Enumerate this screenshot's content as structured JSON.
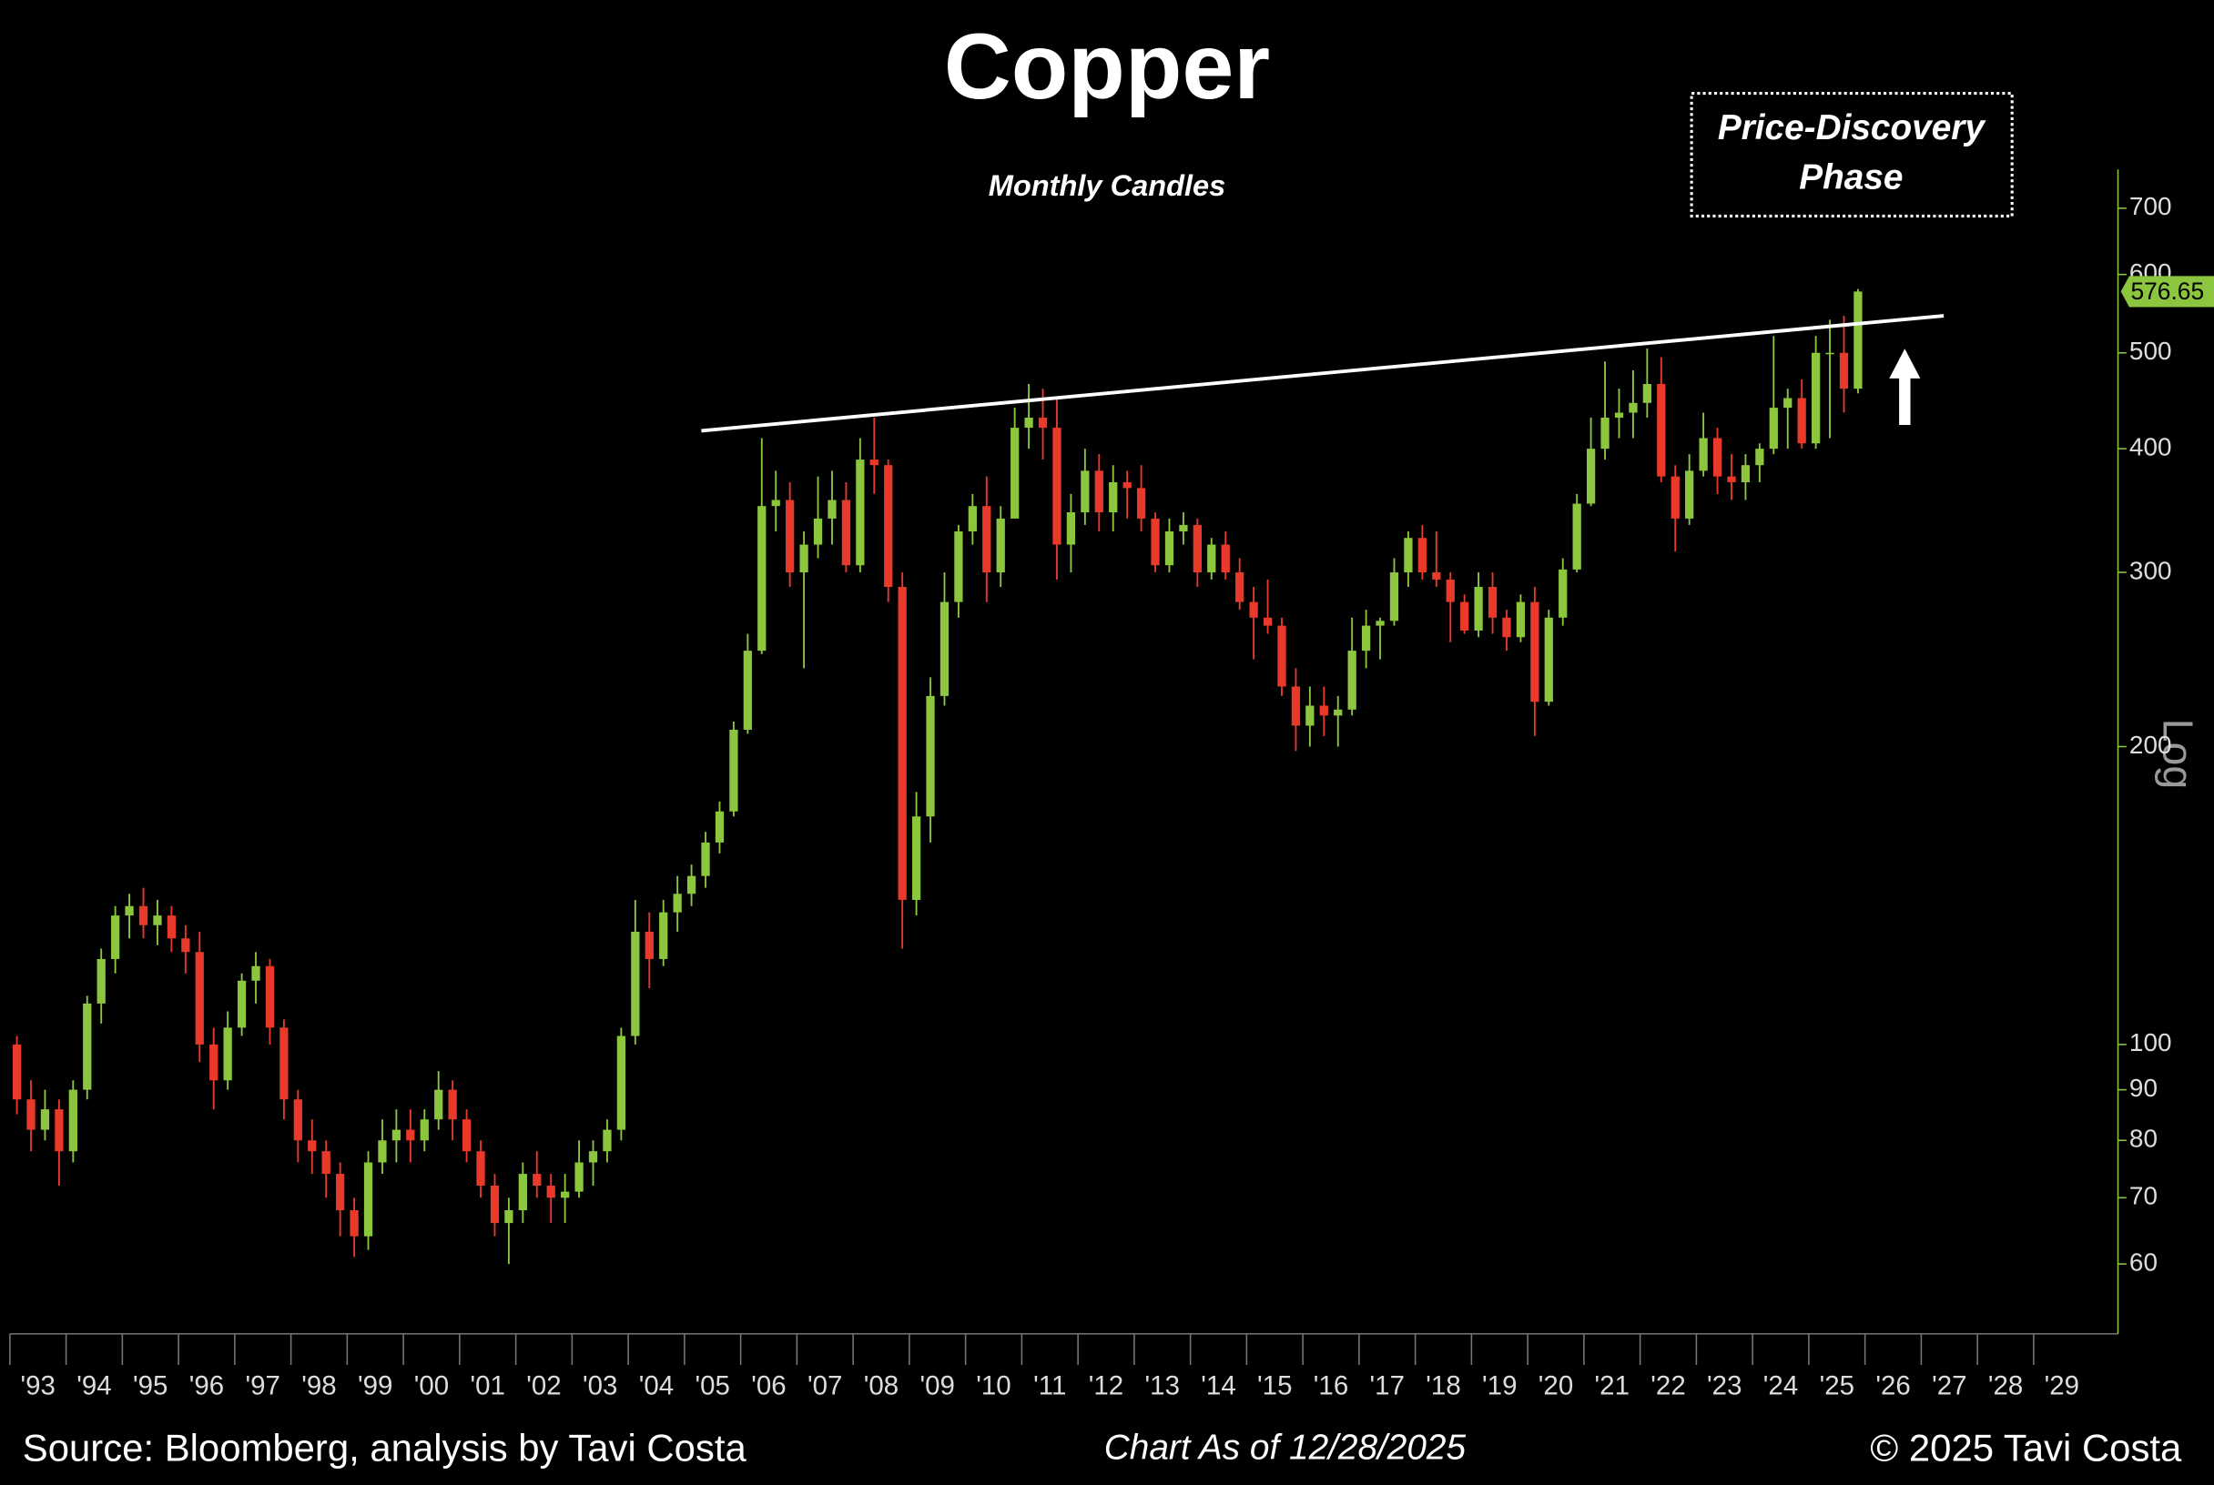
{
  "chart_data": {
    "type": "candlestick",
    "title": "Copper",
    "subtitle": "Monthly Candles",
    "annotation": [
      "Price-Discovery",
      "Phase"
    ],
    "scale_label": "Log",
    "log_scale": true,
    "up_color": "#8cc63f",
    "down_color": "#e8392a",
    "trendline": {
      "color": "#ffffff",
      "x": [
        2005.3,
        2027.4
      ],
      "y": [
        417,
        545
      ]
    },
    "xlim": [
      1993,
      2030.5
    ],
    "ylim": [
      51,
      766
    ],
    "xticks": [
      {
        "value": 1993,
        "label": "'93"
      },
      {
        "value": 1994,
        "label": "'94"
      },
      {
        "value": 1995,
        "label": "'95"
      },
      {
        "value": 1996,
        "label": "'96"
      },
      {
        "value": 1997,
        "label": "'97"
      },
      {
        "value": 1998,
        "label": "'98"
      },
      {
        "value": 1999,
        "label": "'99"
      },
      {
        "value": 2000,
        "label": "'00"
      },
      {
        "value": 2001,
        "label": "'01"
      },
      {
        "value": 2002,
        "label": "'02"
      },
      {
        "value": 2003,
        "label": "'03"
      },
      {
        "value": 2004,
        "label": "'04"
      },
      {
        "value": 2005,
        "label": "'05"
      },
      {
        "value": 2006,
        "label": "'06"
      },
      {
        "value": 2007,
        "label": "'07"
      },
      {
        "value": 2008,
        "label": "'08"
      },
      {
        "value": 2009,
        "label": "'09"
      },
      {
        "value": 2010,
        "label": "'10"
      },
      {
        "value": 2011,
        "label": "'11"
      },
      {
        "value": 2012,
        "label": "'12"
      },
      {
        "value": 2013,
        "label": "'13"
      },
      {
        "value": 2014,
        "label": "'14"
      },
      {
        "value": 2015,
        "label": "'15"
      },
      {
        "value": 2016,
        "label": "'16"
      },
      {
        "value": 2017,
        "label": "'17"
      },
      {
        "value": 2018,
        "label": "'18"
      },
      {
        "value": 2019,
        "label": "'19"
      },
      {
        "value": 2020,
        "label": "'20"
      },
      {
        "value": 2021,
        "label": "'21"
      },
      {
        "value": 2022,
        "label": "'22"
      },
      {
        "value": 2023,
        "label": "'23"
      },
      {
        "value": 2024,
        "label": "'24"
      },
      {
        "value": 2025,
        "label": "'25"
      },
      {
        "value": 2026,
        "label": "'26"
      },
      {
        "value": 2027,
        "label": "'27"
      },
      {
        "value": 2028,
        "label": "'28"
      },
      {
        "value": 2029,
        "label": "'29"
      }
    ],
    "yticks": [
      60,
      70,
      80,
      90,
      100,
      200,
      300,
      400,
      500,
      600,
      700
    ],
    "x": [
      1993.125,
      1993.375,
      1993.625,
      1993.875,
      1994.125,
      1994.375,
      1994.625,
      1994.875,
      1995.125,
      1995.375,
      1995.625,
      1995.875,
      1996.125,
      1996.375,
      1996.625,
      1996.875,
      1997.125,
      1997.375,
      1997.625,
      1997.875,
      1998.125,
      1998.375,
      1998.625,
      1998.875,
      1999.125,
      1999.375,
      1999.625,
      1999.875,
      2000.125,
      2000.375,
      2000.625,
      2000.875,
      2001.125,
      2001.375,
      2001.625,
      2001.875,
      2002.125,
      2002.375,
      2002.625,
      2002.875,
      2003.125,
      2003.375,
      2003.625,
      2003.875,
      2004.125,
      2004.375,
      2004.625,
      2004.875,
      2005.125,
      2005.375,
      2005.625,
      2005.875,
      2006.125,
      2006.375,
      2006.625,
      2006.875,
      2007.125,
      2007.375,
      2007.625,
      2007.875,
      2008.125,
      2008.375,
      2008.625,
      2008.875,
      2009.125,
      2009.375,
      2009.625,
      2009.875,
      2010.125,
      2010.375,
      2010.625,
      2010.875,
      2011.125,
      2011.375,
      2011.625,
      2011.875,
      2012.125,
      2012.375,
      2012.625,
      2012.875,
      2013.125,
      2013.375,
      2013.625,
      2013.875,
      2014.125,
      2014.375,
      2014.625,
      2014.875,
      2015.125,
      2015.375,
      2015.625,
      2015.875,
      2016.125,
      2016.375,
      2016.625,
      2016.875,
      2017.125,
      2017.375,
      2017.625,
      2017.875,
      2018.125,
      2018.375,
      2018.625,
      2018.875,
      2019.125,
      2019.375,
      2019.625,
      2019.875,
      2020.125,
      2020.375,
      2020.625,
      2020.875,
      2021.125,
      2021.375,
      2021.625,
      2021.875,
      2022.125,
      2022.375,
      2022.625,
      2022.875,
      2023.125,
      2023.375,
      2023.625,
      2023.875,
      2024.125,
      2024.375,
      2024.625,
      2024.875,
      2025.125,
      2025.375,
      2025.625,
      2025.875
    ],
    "open": [
      100,
      88,
      82,
      86,
      78,
      90,
      110,
      122,
      135,
      138,
      132,
      135,
      128,
      124,
      100,
      92,
      104,
      116,
      120,
      104,
      88,
      80,
      78,
      74,
      68,
      64,
      76,
      80,
      82,
      80,
      84,
      90,
      84,
      78,
      72,
      66,
      68,
      74,
      72,
      70,
      71,
      76,
      78,
      82,
      102,
      130,
      122,
      136,
      142,
      148,
      160,
      172,
      208,
      250,
      350,
      355,
      300,
      320,
      340,
      355,
      305,
      390,
      385,
      290,
      140,
      170,
      225,
      280,
      330,
      350,
      300,
      340,
      420,
      430,
      420,
      320,
      345,
      380,
      345,
      370,
      365,
      340,
      305,
      330,
      335,
      300,
      320,
      300,
      280,
      270,
      265,
      230,
      210,
      220,
      215,
      218,
      250,
      265,
      268,
      300,
      325,
      300,
      295,
      280,
      262,
      290,
      270,
      258,
      280,
      222,
      270,
      302,
      352,
      400,
      430,
      435,
      445,
      465,
      375,
      340,
      380,
      410,
      375,
      370,
      385,
      400,
      440,
      450,
      405,
      500,
      500,
      460
    ],
    "high": [
      102,
      92,
      90,
      88,
      92,
      112,
      125,
      138,
      142,
      144,
      140,
      138,
      132,
      130,
      104,
      108,
      118,
      124,
      122,
      106,
      90,
      84,
      80,
      76,
      70,
      78,
      84,
      86,
      86,
      86,
      94,
      92,
      86,
      80,
      74,
      70,
      76,
      78,
      74,
      74,
      80,
      80,
      84,
      104,
      140,
      136,
      140,
      148,
      152,
      164,
      176,
      212,
      260,
      410,
      380,
      370,
      330,
      375,
      380,
      370,
      410,
      430,
      390,
      300,
      180,
      235,
      300,
      335,
      360,
      375,
      350,
      440,
      465,
      460,
      450,
      360,
      400,
      395,
      385,
      380,
      385,
      345,
      340,
      345,
      340,
      325,
      330,
      310,
      290,
      295,
      270,
      240,
      230,
      230,
      225,
      270,
      275,
      270,
      310,
      330,
      335,
      330,
      300,
      285,
      300,
      300,
      275,
      285,
      290,
      275,
      310,
      360,
      430,
      490,
      460,
      480,
      505,
      495,
      385,
      395,
      435,
      420,
      395,
      395,
      405,
      520,
      460,
      470,
      520,
      540,
      545,
      580
    ],
    "low": [
      85,
      78,
      80,
      72,
      76,
      88,
      105,
      118,
      128,
      128,
      126,
      124,
      118,
      96,
      86,
      90,
      102,
      110,
      100,
      84,
      76,
      74,
      70,
      64,
      61,
      62,
      74,
      76,
      76,
      78,
      82,
      80,
      76,
      70,
      64,
      60,
      66,
      70,
      66,
      66,
      70,
      72,
      76,
      80,
      100,
      114,
      120,
      130,
      138,
      144,
      156,
      170,
      206,
      248,
      330,
      290,
      240,
      310,
      320,
      300,
      300,
      360,
      280,
      125,
      135,
      160,
      220,
      270,
      320,
      280,
      290,
      340,
      400,
      390,
      295,
      300,
      335,
      330,
      330,
      340,
      330,
      300,
      300,
      320,
      290,
      295,
      295,
      275,
      245,
      260,
      225,
      198,
      200,
      205,
      200,
      215,
      240,
      245,
      265,
      290,
      295,
      290,
      255,
      260,
      258,
      260,
      250,
      255,
      205,
      220,
      265,
      300,
      350,
      390,
      410,
      410,
      430,
      370,
      315,
      335,
      375,
      360,
      355,
      355,
      370,
      395,
      400,
      400,
      400,
      410,
      435,
      455
    ],
    "close": [
      88,
      82,
      86,
      78,
      90,
      110,
      122,
      135,
      138,
      132,
      135,
      128,
      124,
      100,
      92,
      104,
      116,
      120,
      104,
      88,
      80,
      78,
      74,
      68,
      64,
      76,
      80,
      82,
      80,
      84,
      90,
      84,
      78,
      72,
      66,
      68,
      74,
      72,
      70,
      71,
      76,
      78,
      82,
      102,
      130,
      122,
      136,
      142,
      148,
      160,
      172,
      208,
      250,
      350,
      355,
      300,
      320,
      340,
      355,
      305,
      390,
      385,
      290,
      140,
      170,
      225,
      280,
      330,
      350,
      300,
      340,
      420,
      430,
      420,
      320,
      345,
      380,
      345,
      370,
      365,
      340,
      305,
      330,
      335,
      300,
      320,
      300,
      280,
      270,
      265,
      230,
      210,
      220,
      215,
      218,
      250,
      265,
      268,
      300,
      325,
      300,
      295,
      280,
      262,
      290,
      270,
      258,
      280,
      222,
      270,
      302,
      352,
      400,
      430,
      435,
      445,
      465,
      375,
      340,
      380,
      410,
      375,
      370,
      385,
      400,
      440,
      450,
      405,
      500,
      500,
      460,
      576.65
    ]
  },
  "footer": {
    "source": "Source: Bloomberg, analysis by Tavi Costa",
    "as_of": "Chart As of 12/28/2025",
    "copyright": "© 2025 Tavi Costa"
  }
}
